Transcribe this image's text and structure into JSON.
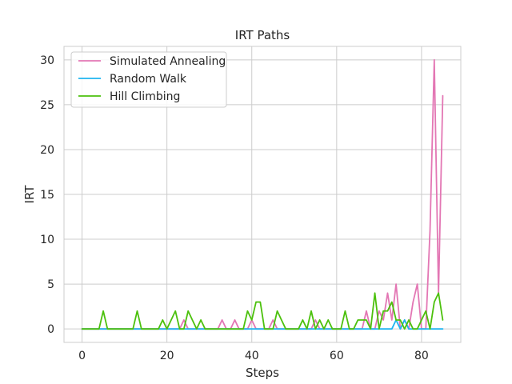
{
  "chart_data": {
    "type": "line",
    "title": "IRT Paths",
    "xlabel": "Steps",
    "ylabel": "IRT",
    "xlim": [
      -4.25,
      89.25
    ],
    "ylim": [
      -1.5,
      31.5
    ],
    "xticks": [
      0,
      20,
      40,
      60,
      80
    ],
    "yticks": [
      0,
      5,
      10,
      15,
      20,
      25,
      30
    ],
    "grid": true,
    "legend_position": "upper-left",
    "x": [
      0,
      1,
      2,
      3,
      4,
      5,
      6,
      7,
      8,
      9,
      10,
      11,
      12,
      13,
      14,
      15,
      16,
      17,
      18,
      19,
      20,
      21,
      22,
      23,
      24,
      25,
      26,
      27,
      28,
      29,
      30,
      31,
      32,
      33,
      34,
      35,
      36,
      37,
      38,
      39,
      40,
      41,
      42,
      43,
      44,
      45,
      46,
      47,
      48,
      49,
      50,
      51,
      52,
      53,
      54,
      55,
      56,
      57,
      58,
      59,
      60,
      61,
      62,
      63,
      64,
      65,
      66,
      67,
      68,
      69,
      70,
      71,
      72,
      73,
      74,
      75,
      76,
      77,
      78,
      79,
      80,
      81,
      82,
      83,
      84,
      85
    ],
    "series": [
      {
        "name": "Simulated Annealing",
        "color": "#e377b4",
        "values": [
          0,
          0,
          0,
          0,
          0,
          0,
          0,
          0,
          0,
          0,
          0,
          0,
          0,
          0,
          0,
          0,
          0,
          0,
          0,
          0,
          0,
          0,
          0,
          0,
          1,
          0,
          0,
          0,
          0,
          0,
          0,
          0,
          0,
          1,
          0,
          0,
          1,
          0,
          0,
          0,
          1,
          0,
          0,
          0,
          0,
          1,
          0,
          0,
          0,
          0,
          0,
          0,
          0,
          0,
          0,
          1,
          0,
          0,
          0,
          0,
          0,
          0,
          0,
          0,
          0,
          0,
          0,
          2,
          0,
          0,
          2,
          1,
          4,
          1,
          5,
          0,
          1,
          0,
          3,
          5,
          0,
          0,
          11,
          30,
          4,
          26
        ]
      },
      {
        "name": "Random Walk",
        "color": "#1fb4f0",
        "values": [
          0,
          0,
          0,
          0,
          0,
          0,
          0,
          0,
          0,
          0,
          0,
          0,
          0,
          0,
          0,
          0,
          0,
          0,
          0,
          0,
          0,
          0,
          0,
          0,
          0,
          0,
          0,
          0,
          0,
          0,
          0,
          0,
          0,
          0,
          0,
          0,
          0,
          0,
          0,
          0,
          0,
          0,
          0,
          0,
          0,
          0,
          0,
          0,
          0,
          0,
          0,
          0,
          0,
          0,
          0,
          0,
          0,
          0,
          0,
          0,
          0,
          0,
          0,
          0,
          0,
          0,
          0,
          0,
          0,
          0,
          0,
          0,
          0,
          0,
          1,
          0,
          1,
          0,
          0,
          0,
          0,
          0,
          0,
          0,
          0,
          0
        ]
      },
      {
        "name": "Hill Climbing",
        "color": "#4cc10d",
        "values": [
          0,
          0,
          0,
          0,
          0,
          2,
          0,
          0,
          0,
          0,
          0,
          0,
          0,
          2,
          0,
          0,
          0,
          0,
          0,
          1,
          0,
          1,
          2,
          0,
          0,
          2,
          1,
          0,
          1,
          0,
          0,
          0,
          0,
          0,
          0,
          0,
          0,
          0,
          0,
          2,
          1,
          3,
          3,
          0,
          0,
          0,
          2,
          1,
          0,
          0,
          0,
          0,
          1,
          0,
          2,
          0,
          1,
          0,
          1,
          0,
          0,
          0,
          2,
          0,
          0,
          1,
          1,
          1,
          0,
          4,
          0,
          2,
          2,
          3,
          1,
          1,
          0,
          1,
          0,
          0,
          1,
          2,
          0,
          3,
          4,
          1
        ]
      }
    ]
  }
}
